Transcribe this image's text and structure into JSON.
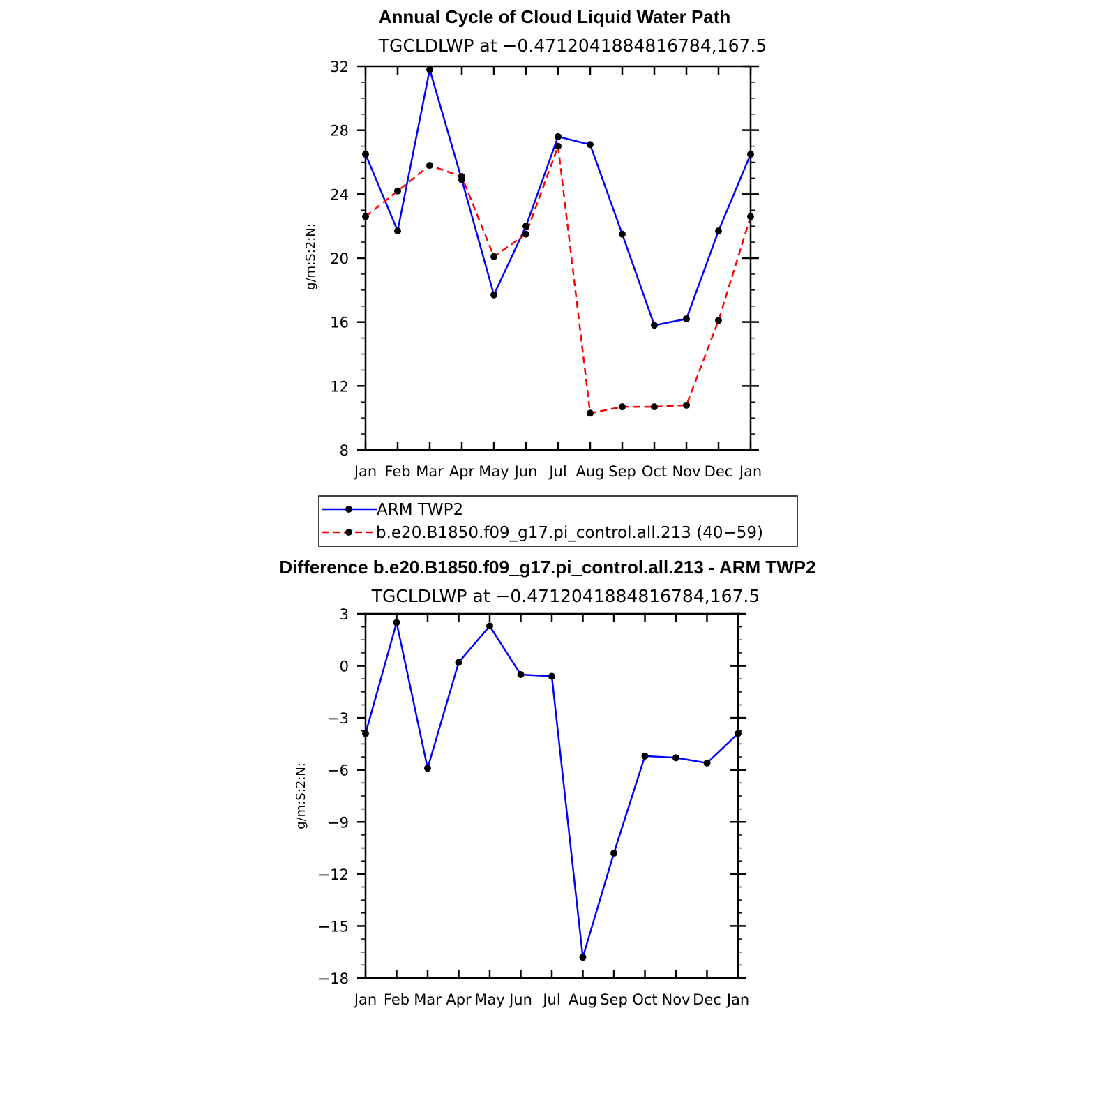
{
  "chart_data": [
    {
      "type": "line",
      "title": "Annual Cycle of Cloud Liquid Water Path",
      "subtitle": "TGCLDLWP at −0.4712041884816784,167.5",
      "xlabel": "",
      "ylabel": "g/m:S:2:N:",
      "categories": [
        "Jan",
        "Feb",
        "Mar",
        "Apr",
        "May",
        "Jun",
        "Jul",
        "Aug",
        "Sep",
        "Oct",
        "Nov",
        "Dec",
        "Jan"
      ],
      "ylim": [
        8,
        32
      ],
      "yticks": [
        "8",
        "12",
        "16",
        "20",
        "24",
        "28",
        "32"
      ],
      "series": [
        {
          "name": "ARM TWP2",
          "color": "#0000ff",
          "dash": "solid",
          "values": [
            26.5,
            21.7,
            31.8,
            24.9,
            17.7,
            22.0,
            27.6,
            27.1,
            21.5,
            15.8,
            16.2,
            21.7,
            26.5
          ]
        },
        {
          "name": "b.e20.B1850.f09_g17.pi_control.all.213 (40−59)",
          "color": "#ff0000",
          "dash": "dashed",
          "values": [
            22.6,
            24.2,
            25.8,
            25.1,
            20.1,
            21.5,
            27.0,
            10.3,
            10.7,
            10.7,
            10.8,
            16.1,
            22.6
          ]
        }
      ],
      "legend": "below"
    },
    {
      "type": "line",
      "title": "Difference b.e20.B1850.f09_g17.pi_control.all.213 - ARM TWP2",
      "subtitle": "TGCLDLWP at −0.4712041884816784,167.5",
      "xlabel": "",
      "ylabel": "g/m:S:2:N:",
      "categories": [
        "Jan",
        "Feb",
        "Mar",
        "Apr",
        "May",
        "Jun",
        "Jul",
        "Aug",
        "Sep",
        "Oct",
        "Nov",
        "Dec",
        "Jan"
      ],
      "ylim": [
        -18,
        3
      ],
      "yticks": [
        "−18",
        "−15",
        "−12",
        "−9",
        "−6",
        "−3",
        "0",
        "3"
      ],
      "series": [
        {
          "name": "Difference",
          "color": "#0000ff",
          "dash": "solid",
          "values": [
            -3.9,
            2.5,
            -5.9,
            0.2,
            2.3,
            -0.5,
            -0.6,
            -16.8,
            -10.8,
            -5.2,
            -5.3,
            -5.6,
            -3.9
          ]
        }
      ]
    }
  ]
}
